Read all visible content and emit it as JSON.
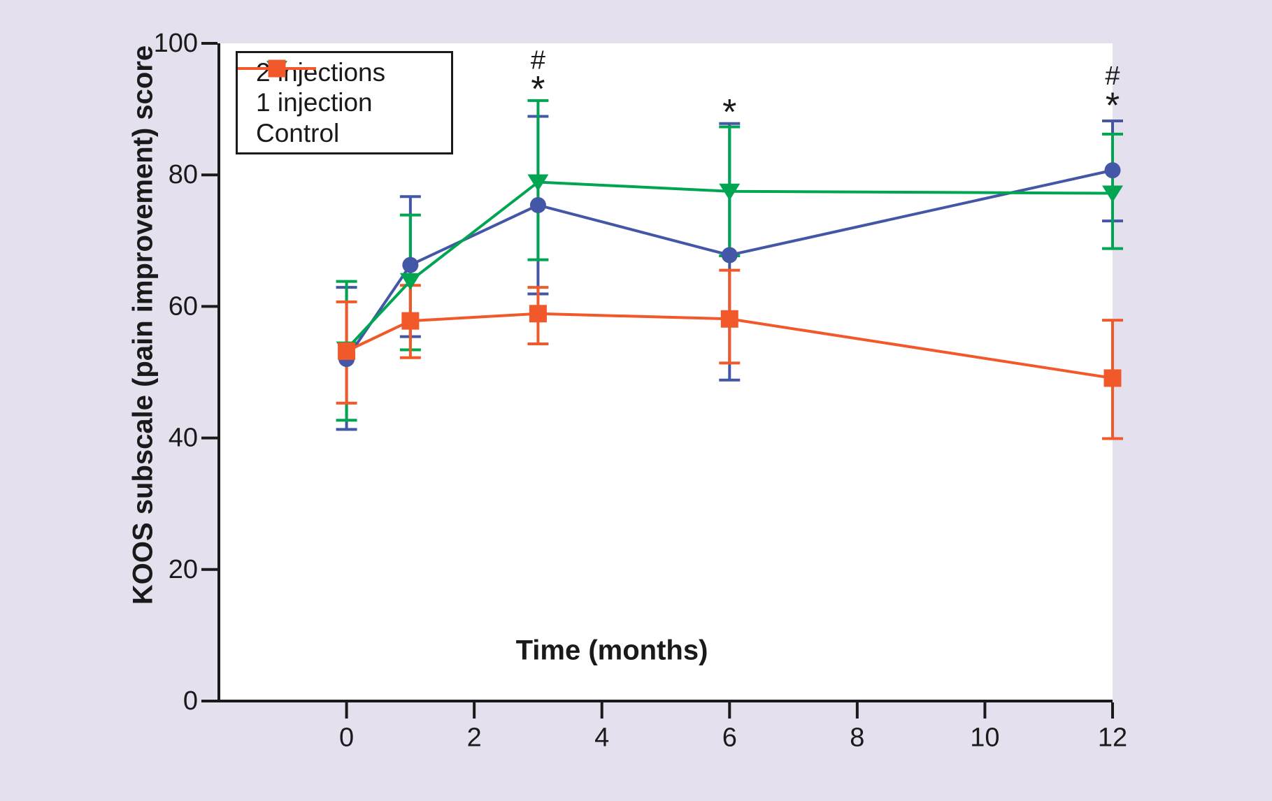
{
  "figure": {
    "background_color": "#e4e0ee",
    "plot_background": "#ffffff",
    "axis_color": "#1a1a1a"
  },
  "axes": {
    "x_label": "Time (months)",
    "y_label": "KOOS subscale (pain improvement) score",
    "x_ticks": [
      0,
      2,
      4,
      6,
      8,
      10,
      12
    ],
    "y_ticks": [
      0,
      20,
      40,
      60,
      80,
      100
    ],
    "xlim": [
      -2,
      12
    ],
    "ylim": [
      0,
      100
    ],
    "grid": false,
    "legend_position": "top-left"
  },
  "chart_data": {
    "type": "line",
    "title": "",
    "xlabel": "Time (months)",
    "ylabel": "KOOS subscale (pain improvement) score",
    "x": [
      0,
      1,
      3,
      6,
      12
    ],
    "series": [
      {
        "name": "2 injections",
        "color": "#4456a6",
        "marker": "circle",
        "values": [
          52.0,
          66.3,
          75.4,
          67.8,
          80.7
        ],
        "err_upper": [
          62.9,
          76.7,
          88.9,
          87.8,
          88.2
        ],
        "err_lower": [
          41.3,
          55.4,
          61.9,
          48.8,
          73.0
        ]
      },
      {
        "name": "1 injection",
        "color": "#00a551",
        "marker": "triangle-down",
        "values": [
          53.5,
          63.9,
          78.9,
          77.5,
          77.2
        ],
        "err_upper": [
          63.8,
          73.9,
          91.3,
          87.3,
          86.2
        ],
        "err_lower": [
          42.7,
          53.4,
          67.1,
          67.7,
          68.8
        ]
      },
      {
        "name": "Control",
        "color": "#f1592a",
        "marker": "square",
        "values": [
          53.2,
          57.8,
          58.9,
          58.1,
          49.1
        ],
        "err_upper": [
          60.7,
          63.2,
          62.9,
          65.5,
          57.9
        ],
        "err_lower": [
          45.3,
          52.2,
          54.3,
          51.4,
          39.9
        ]
      }
    ],
    "annotations": [
      {
        "x": 3,
        "y": 97.4,
        "symbol": "#"
      },
      {
        "x": 3,
        "y": 93.0,
        "symbol": "*"
      },
      {
        "x": 6,
        "y": 89.5,
        "symbol": "*"
      },
      {
        "x": 12,
        "y": 95.0,
        "symbol": "#"
      },
      {
        "x": 12,
        "y": 90.5,
        "symbol": "*"
      }
    ]
  },
  "legend": {
    "items": [
      {
        "label": "2 injections"
      },
      {
        "label": "1 injection"
      },
      {
        "label": "Control"
      }
    ]
  }
}
